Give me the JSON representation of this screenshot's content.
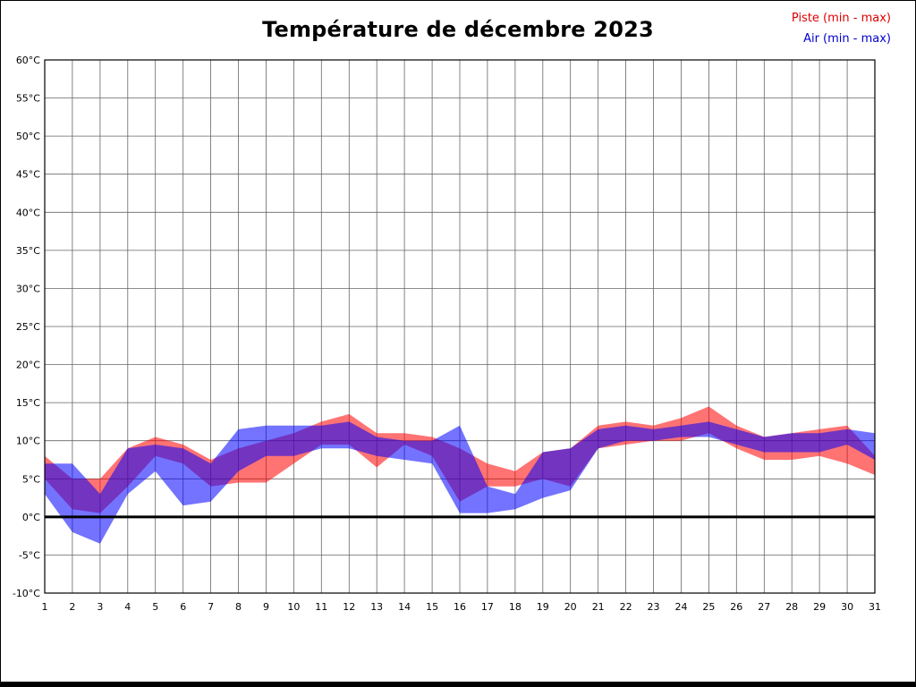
{
  "legend": [
    {
      "label": "Piste (min - max)",
      "color": "#dd0000"
    },
    {
      "label": "Air (min - max)",
      "color": "#0000cc"
    }
  ],
  "chart_data": {
    "type": "area",
    "title": "Température de décembre 2023",
    "x": [
      1,
      2,
      3,
      4,
      5,
      6,
      7,
      8,
      9,
      10,
      11,
      12,
      13,
      14,
      15,
      16,
      17,
      18,
      19,
      20,
      21,
      22,
      23,
      24,
      25,
      26,
      27,
      28,
      29,
      30,
      31
    ],
    "xlabel": "",
    "ylabel": "",
    "ylabel_suffix": "°C",
    "ylim": [
      -10,
      60
    ],
    "ytick_step": 5,
    "grid": true,
    "zero_line": true,
    "legend_position": "top-right",
    "series": [
      {
        "name": "Piste (min - max)",
        "color": "#ff0000",
        "min": [
          5,
          1,
          0.5,
          4,
          8,
          7,
          4,
          4.5,
          4.5,
          7,
          9.5,
          9.5,
          6.5,
          9.5,
          8,
          2,
          4,
          4,
          5,
          4,
          9,
          9.5,
          10,
          10,
          11,
          9,
          7.5,
          7.5,
          8,
          7,
          5.5
        ],
        "max": [
          8,
          5,
          5,
          9,
          10.5,
          9.5,
          7.5,
          9,
          10,
          11,
          12.5,
          13.5,
          11,
          11,
          10.5,
          9,
          7,
          6,
          8.5,
          9,
          12,
          12.5,
          12,
          13,
          14.5,
          12,
          10.5,
          11,
          11.5,
          12,
          8
        ]
      },
      {
        "name": "Air (min - max)",
        "color": "#0000ff",
        "min": [
          3,
          -2,
          -3.5,
          3,
          6,
          1.5,
          2,
          6,
          8,
          8,
          9,
          9,
          8,
          7.5,
          7,
          0.5,
          0.5,
          1,
          2.5,
          3.5,
          9,
          10,
          10,
          10.5,
          10.5,
          9.5,
          8.5,
          8.5,
          8.5,
          9.5,
          7.5
        ],
        "max": [
          7,
          7,
          3,
          9,
          9.5,
          9,
          7,
          11.5,
          12,
          12,
          12,
          12.5,
          10.5,
          10,
          10,
          12,
          4,
          3,
          8.5,
          9,
          11.5,
          12,
          11.5,
          12,
          12.5,
          11.5,
          10.5,
          11,
          11,
          11.5,
          11
        ]
      }
    ]
  }
}
